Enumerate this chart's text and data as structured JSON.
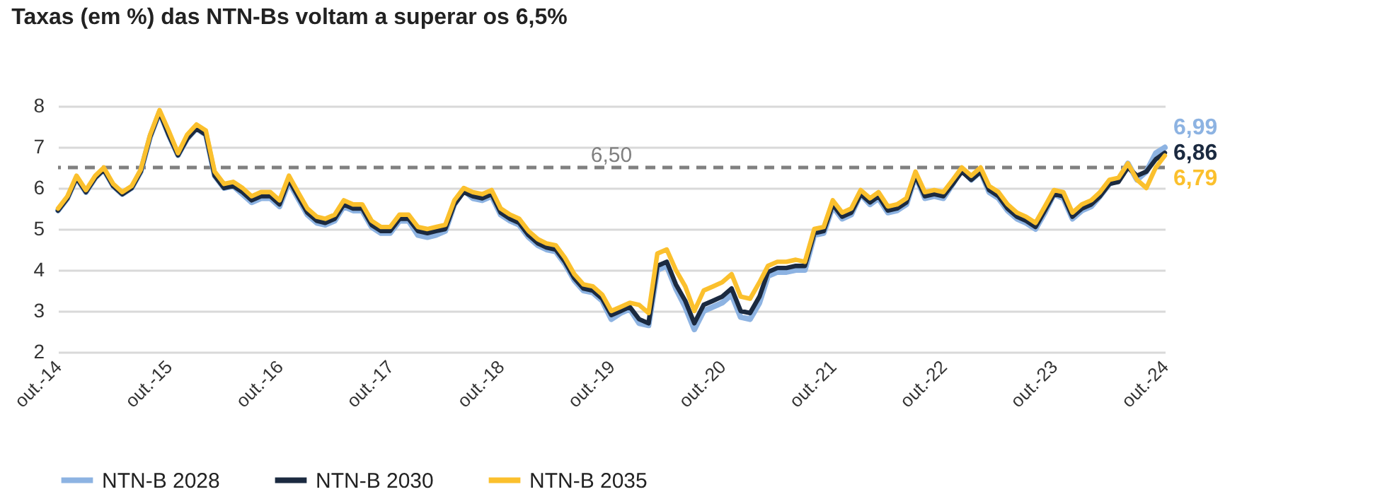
{
  "chart_data": {
    "type": "line",
    "title": "Taxas (em %) das NTN-Bs voltam a superar os 6,5%",
    "x": [
      "2014-10",
      "2014-11",
      "2014-12",
      "2015-01",
      "2015-02",
      "2015-03",
      "2015-04",
      "2015-05",
      "2015-06",
      "2015-07",
      "2015-08",
      "2015-09",
      "2015-10",
      "2015-11",
      "2015-12",
      "2016-01",
      "2016-02",
      "2016-03",
      "2016-04",
      "2016-05",
      "2016-06",
      "2016-07",
      "2016-08",
      "2016-09",
      "2016-10",
      "2016-11",
      "2016-12",
      "2017-01",
      "2017-02",
      "2017-03",
      "2017-04",
      "2017-05",
      "2017-06",
      "2017-07",
      "2017-08",
      "2017-09",
      "2017-10",
      "2017-11",
      "2017-12",
      "2018-01",
      "2018-02",
      "2018-03",
      "2018-04",
      "2018-05",
      "2018-06",
      "2018-07",
      "2018-08",
      "2018-09",
      "2018-10",
      "2018-11",
      "2018-12",
      "2019-01",
      "2019-02",
      "2019-03",
      "2019-04",
      "2019-05",
      "2019-06",
      "2019-07",
      "2019-08",
      "2019-09",
      "2019-10",
      "2019-11",
      "2019-12",
      "2020-01",
      "2020-02",
      "2020-03",
      "2020-04",
      "2020-05",
      "2020-06",
      "2020-07",
      "2020-08",
      "2020-09",
      "2020-10",
      "2020-11",
      "2020-12",
      "2021-01",
      "2021-02",
      "2021-03",
      "2021-04",
      "2021-05",
      "2021-06",
      "2021-07",
      "2021-08",
      "2021-09",
      "2021-10",
      "2021-11",
      "2021-12",
      "2022-01",
      "2022-02",
      "2022-03",
      "2022-04",
      "2022-05",
      "2022-06",
      "2022-07",
      "2022-08",
      "2022-09",
      "2022-10",
      "2022-11",
      "2022-12",
      "2023-01",
      "2023-02",
      "2023-03",
      "2023-04",
      "2023-05",
      "2023-06",
      "2023-07",
      "2023-08",
      "2023-09",
      "2023-10",
      "2023-11",
      "2023-12",
      "2024-01",
      "2024-02",
      "2024-03",
      "2024-04",
      "2024-05",
      "2024-06",
      "2024-07",
      "2024-08",
      "2024-09",
      "2024-10"
    ],
    "series": [
      {
        "name": "NTN-B 2028",
        "color": "#8db3e2",
        "values": [
          5.45,
          5.75,
          6.25,
          5.9,
          6.25,
          6.45,
          6.05,
          5.85,
          6.0,
          6.4,
          7.25,
          7.85,
          7.3,
          6.8,
          7.2,
          7.45,
          7.3,
          6.3,
          6.0,
          6.05,
          5.85,
          5.65,
          5.75,
          5.75,
          5.55,
          6.15,
          5.75,
          5.35,
          5.15,
          5.1,
          5.2,
          5.55,
          5.45,
          5.45,
          5.05,
          4.9,
          4.9,
          5.2,
          5.2,
          4.85,
          4.8,
          4.85,
          4.95,
          5.6,
          5.95,
          5.75,
          5.7,
          5.8,
          5.35,
          5.2,
          5.1,
          4.8,
          4.6,
          4.5,
          4.45,
          4.15,
          3.75,
          3.5,
          3.45,
          3.25,
          2.8,
          2.95,
          3.05,
          2.7,
          2.65,
          4.0,
          4.1,
          3.55,
          3.1,
          2.55,
          3.0,
          3.1,
          3.2,
          3.4,
          2.85,
          2.8,
          3.2,
          3.85,
          3.95,
          3.95,
          4.0,
          4.0,
          4.85,
          4.9,
          5.55,
          5.25,
          5.35,
          5.85,
          5.6,
          5.75,
          5.4,
          5.45,
          5.6,
          6.3,
          5.75,
          5.8,
          5.75,
          6.1,
          6.45,
          6.2,
          6.4,
          5.9,
          5.75,
          5.45,
          5.25,
          5.15,
          5.0,
          5.4,
          5.85,
          5.75,
          5.25,
          5.45,
          5.55,
          5.8,
          6.1,
          6.2,
          6.6,
          6.2,
          6.4,
          6.85,
          6.99
        ],
        "value_labels": [
          null,
          null,
          null,
          null,
          null,
          null,
          null,
          null,
          null,
          null,
          null,
          null,
          null,
          null,
          null,
          null,
          null,
          null,
          null,
          null,
          null,
          null,
          null,
          null,
          null,
          null,
          null,
          null,
          null,
          null,
          null,
          null,
          null,
          null,
          null,
          null,
          null,
          null,
          null,
          null,
          null,
          null,
          null,
          null,
          null,
          null,
          null,
          null,
          null,
          null,
          null,
          null,
          null,
          null,
          null,
          null,
          null,
          null,
          null,
          null,
          null,
          null,
          null,
          null,
          null,
          null,
          null,
          null,
          null,
          null,
          null,
          null,
          null,
          null,
          null,
          null,
          null,
          null,
          null,
          null,
          null,
          null,
          null,
          null,
          null,
          null,
          null,
          null,
          null,
          null,
          null,
          null,
          null,
          null,
          null,
          null,
          null,
          null,
          null,
          null,
          null,
          null,
          null,
          null,
          null,
          null,
          null,
          null,
          null,
          null,
          null,
          null,
          null,
          null,
          null,
          null,
          null,
          null,
          null,
          null,
          "6,99"
        ]
      },
      {
        "name": "NTN-B 2030",
        "color": "#1b2a40",
        "values": [
          5.45,
          5.75,
          6.25,
          5.9,
          6.25,
          6.45,
          6.05,
          5.85,
          6.0,
          6.4,
          7.25,
          7.85,
          7.3,
          6.8,
          7.2,
          7.45,
          7.3,
          6.3,
          6.0,
          6.05,
          5.9,
          5.7,
          5.8,
          5.8,
          5.6,
          6.2,
          5.8,
          5.4,
          5.2,
          5.15,
          5.25,
          5.6,
          5.5,
          5.5,
          5.1,
          4.95,
          4.95,
          5.25,
          5.25,
          4.95,
          4.9,
          4.95,
          5.0,
          5.6,
          5.9,
          5.8,
          5.75,
          5.85,
          5.4,
          5.25,
          5.15,
          4.85,
          4.65,
          4.55,
          4.5,
          4.2,
          3.8,
          3.55,
          3.5,
          3.3,
          2.9,
          3.0,
          3.1,
          2.8,
          2.7,
          4.1,
          4.2,
          3.65,
          3.25,
          2.7,
          3.15,
          3.25,
          3.35,
          3.55,
          3.0,
          2.95,
          3.35,
          3.95,
          4.05,
          4.05,
          4.1,
          4.1,
          4.9,
          4.95,
          5.6,
          5.3,
          5.4,
          5.85,
          5.65,
          5.8,
          5.45,
          5.5,
          5.65,
          6.3,
          5.8,
          5.85,
          5.8,
          6.1,
          6.4,
          6.2,
          6.4,
          5.95,
          5.8,
          5.5,
          5.3,
          5.2,
          5.05,
          5.45,
          5.85,
          5.8,
          5.3,
          5.5,
          5.6,
          5.8,
          6.1,
          6.15,
          6.5,
          6.3,
          6.4,
          6.7,
          6.86
        ],
        "value_labels": [
          null,
          null,
          null,
          null,
          null,
          null,
          null,
          null,
          null,
          null,
          null,
          null,
          null,
          null,
          null,
          null,
          null,
          null,
          null,
          null,
          null,
          null,
          null,
          null,
          null,
          null,
          null,
          null,
          null,
          null,
          null,
          null,
          null,
          null,
          null,
          null,
          null,
          null,
          null,
          null,
          null,
          null,
          null,
          null,
          null,
          null,
          null,
          null,
          null,
          null,
          null,
          null,
          null,
          null,
          null,
          null,
          null,
          null,
          null,
          null,
          null,
          null,
          null,
          null,
          null,
          null,
          null,
          null,
          null,
          null,
          null,
          null,
          null,
          null,
          null,
          null,
          null,
          null,
          null,
          null,
          null,
          null,
          null,
          null,
          null,
          null,
          null,
          null,
          null,
          null,
          null,
          null,
          null,
          null,
          null,
          null,
          null,
          null,
          null,
          null,
          null,
          null,
          null,
          null,
          null,
          null,
          null,
          null,
          null,
          null,
          null,
          null,
          null,
          null,
          null,
          null,
          null,
          null,
          null,
          null,
          "6,86"
        ]
      },
      {
        "name": "NTN-B 2035",
        "color": "#fbc02d",
        "values": [
          5.5,
          5.8,
          6.3,
          5.95,
          6.3,
          6.5,
          6.1,
          5.9,
          6.05,
          6.45,
          7.3,
          7.9,
          7.4,
          6.85,
          7.3,
          7.55,
          7.4,
          6.4,
          6.1,
          6.15,
          6.0,
          5.8,
          5.9,
          5.9,
          5.7,
          6.3,
          5.9,
          5.5,
          5.3,
          5.25,
          5.35,
          5.7,
          5.6,
          5.6,
          5.2,
          5.05,
          5.05,
          5.35,
          5.35,
          5.05,
          5.0,
          5.05,
          5.1,
          5.7,
          6.0,
          5.9,
          5.85,
          5.95,
          5.5,
          5.35,
          5.25,
          4.95,
          4.75,
          4.65,
          4.6,
          4.3,
          3.9,
          3.65,
          3.6,
          3.4,
          3.0,
          3.1,
          3.2,
          3.15,
          2.95,
          4.4,
          4.5,
          4.0,
          3.6,
          3.0,
          3.5,
          3.6,
          3.7,
          3.9,
          3.35,
          3.3,
          3.7,
          4.1,
          4.2,
          4.2,
          4.25,
          4.2,
          5.0,
          5.05,
          5.7,
          5.4,
          5.5,
          5.95,
          5.75,
          5.9,
          5.55,
          5.6,
          5.75,
          6.4,
          5.9,
          5.95,
          5.9,
          6.2,
          6.5,
          6.3,
          6.5,
          6.05,
          5.9,
          5.6,
          5.4,
          5.3,
          5.15,
          5.55,
          5.95,
          5.9,
          5.4,
          5.6,
          5.7,
          5.9,
          6.2,
          6.25,
          6.6,
          6.2,
          6.0,
          6.5,
          6.79
        ],
        "value_labels": [
          null,
          null,
          null,
          null,
          null,
          null,
          null,
          null,
          null,
          null,
          null,
          null,
          null,
          null,
          null,
          null,
          null,
          null,
          null,
          null,
          null,
          null,
          null,
          null,
          null,
          null,
          null,
          null,
          null,
          null,
          null,
          null,
          null,
          null,
          null,
          null,
          null,
          null,
          null,
          null,
          null,
          null,
          null,
          null,
          null,
          null,
          null,
          null,
          null,
          null,
          null,
          null,
          null,
          null,
          null,
          null,
          null,
          null,
          null,
          null,
          null,
          null,
          null,
          null,
          null,
          null,
          null,
          null,
          null,
          null,
          null,
          null,
          null,
          null,
          null,
          null,
          null,
          null,
          null,
          null,
          null,
          null,
          null,
          null,
          null,
          null,
          null,
          null,
          null,
          null,
          null,
          null,
          null,
          null,
          null,
          null,
          null,
          null,
          null,
          null,
          null,
          null,
          null,
          null,
          null,
          null,
          null,
          null,
          null,
          null,
          null,
          null,
          null,
          null,
          null,
          null,
          null,
          null,
          null,
          null,
          "6,79"
        ]
      }
    ],
    "xlim": [
      "2014-10",
      "2024-10"
    ],
    "xticks": [
      {
        "value": "2014-10",
        "label": "out.-14"
      },
      {
        "value": "2015-10",
        "label": "out.-15"
      },
      {
        "value": "2016-10",
        "label": "out.-16"
      },
      {
        "value": "2017-10",
        "label": "out.-17"
      },
      {
        "value": "2018-10",
        "label": "out.-18"
      },
      {
        "value": "2019-10",
        "label": "out.-19"
      },
      {
        "value": "2020-10",
        "label": "out.-20"
      },
      {
        "value": "2021-10",
        "label": "out.-21"
      },
      {
        "value": "2022-10",
        "label": "out.-22"
      },
      {
        "value": "2023-10",
        "label": "out.-23"
      },
      {
        "value": "2024-10",
        "label": "out.-24"
      }
    ],
    "ylim": [
      2,
      8
    ],
    "yticks": [
      2,
      3,
      4,
      5,
      6,
      7,
      8
    ],
    "ref_lines": [
      {
        "axis": "y",
        "value": 6.5,
        "label": "6,50",
        "color": "#808080",
        "line_style": "dashed"
      }
    ],
    "grid": "y",
    "legend": "bottom",
    "marker": "none",
    "line_style": "solid"
  }
}
